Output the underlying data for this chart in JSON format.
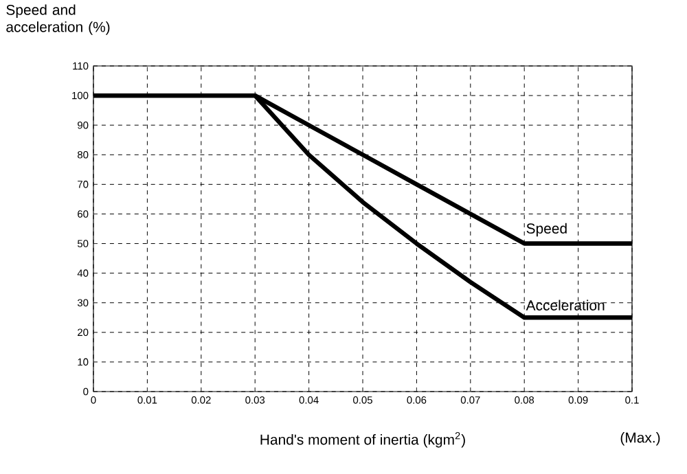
{
  "chart_data": {
    "type": "line",
    "ylabel": "Speed and acceleration (%)",
    "xlabel": "Hand's moment of inertia (kgm$^{2}$)",
    "annotations": [
      "(Max.)"
    ],
    "xlim": [
      0,
      0.1
    ],
    "xticks": [
      0,
      0.01,
      0.02,
      0.03,
      0.04,
      0.05,
      0.06,
      0.07,
      0.08,
      0.09,
      0.1
    ],
    "ylim": [
      0,
      110
    ],
    "yticks": [
      0,
      10,
      20,
      30,
      40,
      50,
      60,
      70,
      80,
      90,
      100,
      110
    ],
    "grid": true,
    "legend": false,
    "marker": "none",
    "line_style": "solid",
    "series": [
      {
        "name": "Speed",
        "color": "#000000",
        "x": [
          0,
          0.03,
          0.04,
          0.05,
          0.06,
          0.07,
          0.08,
          0.1
        ],
        "values": [
          100,
          100,
          90,
          80,
          70,
          60,
          50,
          50
        ]
      },
      {
        "name": "Acceleration",
        "color": "#000000",
        "x": [
          0,
          0.03,
          0.04,
          0.05,
          0.06,
          0.07,
          0.08,
          0.1
        ],
        "values": [
          100,
          100,
          80,
          64,
          50,
          37,
          25,
          25
        ]
      }
    ]
  }
}
